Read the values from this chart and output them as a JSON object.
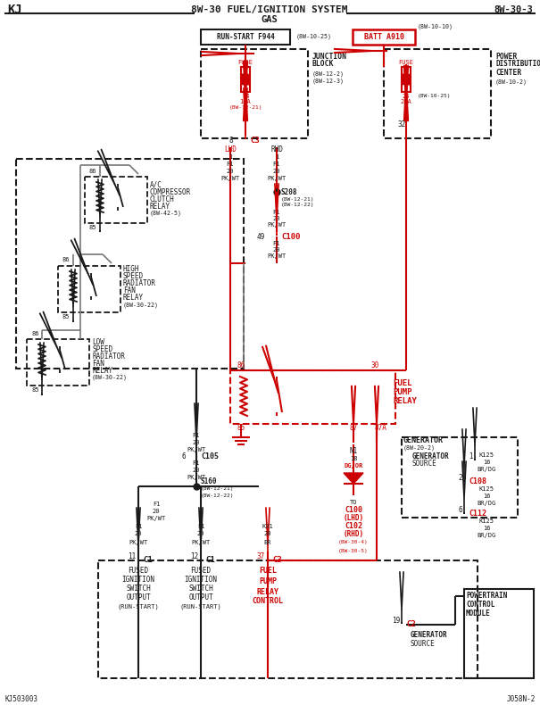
{
  "title": "8W-30 FUEL/IGNITION SYSTEM",
  "subtitle": "GAS",
  "page_ref": "8W…30…3",
  "page_id": "KJ",
  "bg_color": "#ffffff",
  "black": "#1a1a1a",
  "red": "#cc0000",
  "gray": "#777777",
  "footer_left": "KJ503003",
  "footer_right": "J058N-2"
}
